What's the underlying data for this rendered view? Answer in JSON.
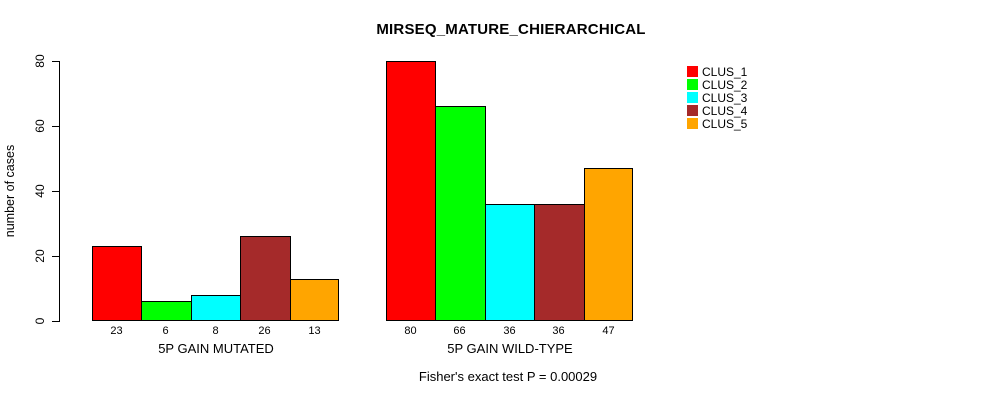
{
  "chart": {
    "title": "MIRSEQ_MATURE_CHIERARCHICAL",
    "subtitle": "Fisher's exact test P = 0.00029",
    "ylabel": "number of cases"
  },
  "chart_data": {
    "type": "bar",
    "title": "MIRSEQ_MATURE_CHIERARCHICAL",
    "subtitle": "Fisher's exact test P = 0.00029",
    "xlabel": "",
    "ylabel": "number of cases",
    "ylim": [
      0,
      80
    ],
    "yticks": [
      0,
      20,
      40,
      60,
      80
    ],
    "grid": false,
    "legend_position": "top-right",
    "categories": [
      "5P GAIN MUTATED",
      "5P GAIN WILD-TYPE"
    ],
    "series": [
      {
        "name": "CLUS_1",
        "color": "#FF0000",
        "values": [
          23,
          80
        ]
      },
      {
        "name": "CLUS_2",
        "color": "#00FF00",
        "values": [
          6,
          66
        ]
      },
      {
        "name": "CLUS_3",
        "color": "#00FFFF",
        "values": [
          8,
          36
        ]
      },
      {
        "name": "CLUS_4",
        "color": "#A52A2A",
        "values": [
          26,
          36
        ]
      },
      {
        "name": "CLUS_5",
        "color": "#FFA500",
        "values": [
          13,
          47
        ]
      }
    ],
    "bar_value_labels": [
      [
        "23",
        "6",
        "8",
        "26",
        "13"
      ],
      [
        "80",
        "66",
        "36",
        "36",
        "47"
      ]
    ]
  },
  "legend": {
    "items": [
      {
        "label": "CLUS_1",
        "color": "#FF0000"
      },
      {
        "label": "CLUS_2",
        "color": "#00FF00"
      },
      {
        "label": "CLUS_3",
        "color": "#00FFFF"
      },
      {
        "label": "CLUS_4",
        "color": "#A52A2A"
      },
      {
        "label": "CLUS_5",
        "color": "#FFA500"
      }
    ]
  }
}
